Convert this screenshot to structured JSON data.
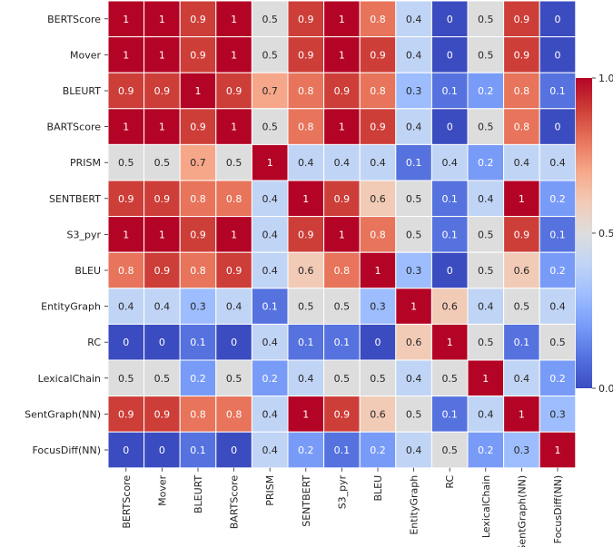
{
  "chart_data": {
    "type": "heatmap",
    "title": "",
    "xlabel": "",
    "ylabel": "",
    "labels": [
      "BERTScore",
      "Mover",
      "BLEURT",
      "BARTScore",
      "PRISM",
      "SENTBERT",
      "S3_pyr",
      "BLEU",
      "EntityGraph",
      "RC",
      "LexicalChain",
      "SentGraph(NN)",
      "FocusDiff(NN)"
    ],
    "matrix": [
      [
        1,
        1,
        0.9,
        1,
        0.5,
        0.9,
        1,
        0.8,
        0.4,
        0,
        0.5,
        0.9,
        0
      ],
      [
        1,
        1,
        0.9,
        1,
        0.5,
        0.9,
        1,
        0.9,
        0.4,
        0,
        0.5,
        0.9,
        0
      ],
      [
        0.9,
        0.9,
        1,
        0.9,
        0.7,
        0.8,
        0.9,
        0.8,
        0.3,
        0.1,
        0.2,
        0.8,
        0.1
      ],
      [
        1,
        1,
        0.9,
        1,
        0.5,
        0.8,
        1,
        0.9,
        0.4,
        0,
        0.5,
        0.8,
        0
      ],
      [
        0.5,
        0.5,
        0.7,
        0.5,
        1,
        0.4,
        0.4,
        0.4,
        0.1,
        0.4,
        0.2,
        0.4,
        0.4
      ],
      [
        0.9,
        0.9,
        0.8,
        0.8,
        0.4,
        1,
        0.9,
        0.6,
        0.5,
        0.1,
        0.4,
        1,
        0.2
      ],
      [
        1,
        1,
        0.9,
        1,
        0.4,
        0.9,
        1,
        0.8,
        0.5,
        0.1,
        0.5,
        0.9,
        0.1
      ],
      [
        0.8,
        0.9,
        0.8,
        0.9,
        0.4,
        0.6,
        0.8,
        1,
        0.3,
        0,
        0.5,
        0.6,
        0.2
      ],
      [
        0.4,
        0.4,
        0.3,
        0.4,
        0.1,
        0.5,
        0.5,
        0.3,
        1,
        0.6,
        0.4,
        0.5,
        0.4
      ],
      [
        0,
        0,
        0.1,
        0,
        0.4,
        0.1,
        0.1,
        0,
        0.6,
        1,
        0.5,
        0.1,
        0.5
      ],
      [
        0.5,
        0.5,
        0.2,
        0.5,
        0.2,
        0.4,
        0.5,
        0.5,
        0.4,
        0.5,
        1,
        0.4,
        0.2
      ],
      [
        0.9,
        0.9,
        0.8,
        0.8,
        0.4,
        1,
        0.9,
        0.6,
        0.5,
        0.1,
        0.4,
        1,
        0.3
      ],
      [
        0,
        0,
        0.1,
        0,
        0.4,
        0.2,
        0.1,
        0.2,
        0.4,
        0.5,
        0.2,
        0.3,
        1
      ]
    ],
    "value_range": [
      0,
      1
    ],
    "colormap": "coolwarm",
    "colorbar": {
      "ticks": [
        1.0,
        0.5,
        0.0
      ],
      "tick_labels": [
        "1.0",
        "0.5",
        "0.0"
      ],
      "placement": "right"
    },
    "colors": {
      "low": "#3b4cc0",
      "mid": "#dddddd",
      "high": "#b40426",
      "gridline": "#ffffff"
    }
  }
}
